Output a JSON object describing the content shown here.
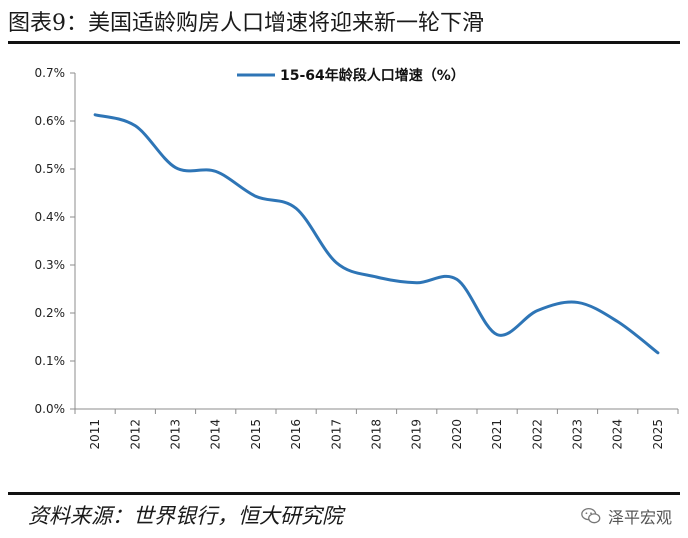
{
  "header": {
    "title": "图表9：美国适龄购房人口增速将迎来新一轮下滑"
  },
  "footer": {
    "source": "资料来源：世界银行，恒大研究院",
    "watermark_text": "泽平宏观",
    "watermark_icon": "wechat-icon"
  },
  "colors": {
    "series": "#2e75b6",
    "axis": "#8c8c8c",
    "text": "#1a1a1a"
  },
  "chart_data": {
    "type": "line",
    "title": "",
    "xlabel": "",
    "ylabel": "",
    "x": [
      "2011",
      "2012",
      "2013",
      "2014",
      "2015",
      "2016",
      "2017",
      "2018",
      "2019",
      "2020",
      "2021",
      "2022",
      "2023",
      "2024",
      "2025"
    ],
    "ylim": [
      0,
      0.7
    ],
    "yticks": [
      0,
      0.1,
      0.2,
      0.3,
      0.4,
      0.5,
      0.6,
      0.7
    ],
    "ytick_labels": [
      "0.0%",
      "0.1%",
      "0.2%",
      "0.3%",
      "0.4%",
      "0.5%",
      "0.6%",
      "0.7%"
    ],
    "grid": false,
    "legend_position": "top-center",
    "series": [
      {
        "name": "15-64年龄段人口增速（%）",
        "values": [
          0.613,
          0.59,
          0.503,
          0.495,
          0.443,
          0.418,
          0.305,
          0.275,
          0.263,
          0.27,
          0.155,
          0.205,
          0.222,
          0.182,
          0.117
        ]
      }
    ]
  }
}
